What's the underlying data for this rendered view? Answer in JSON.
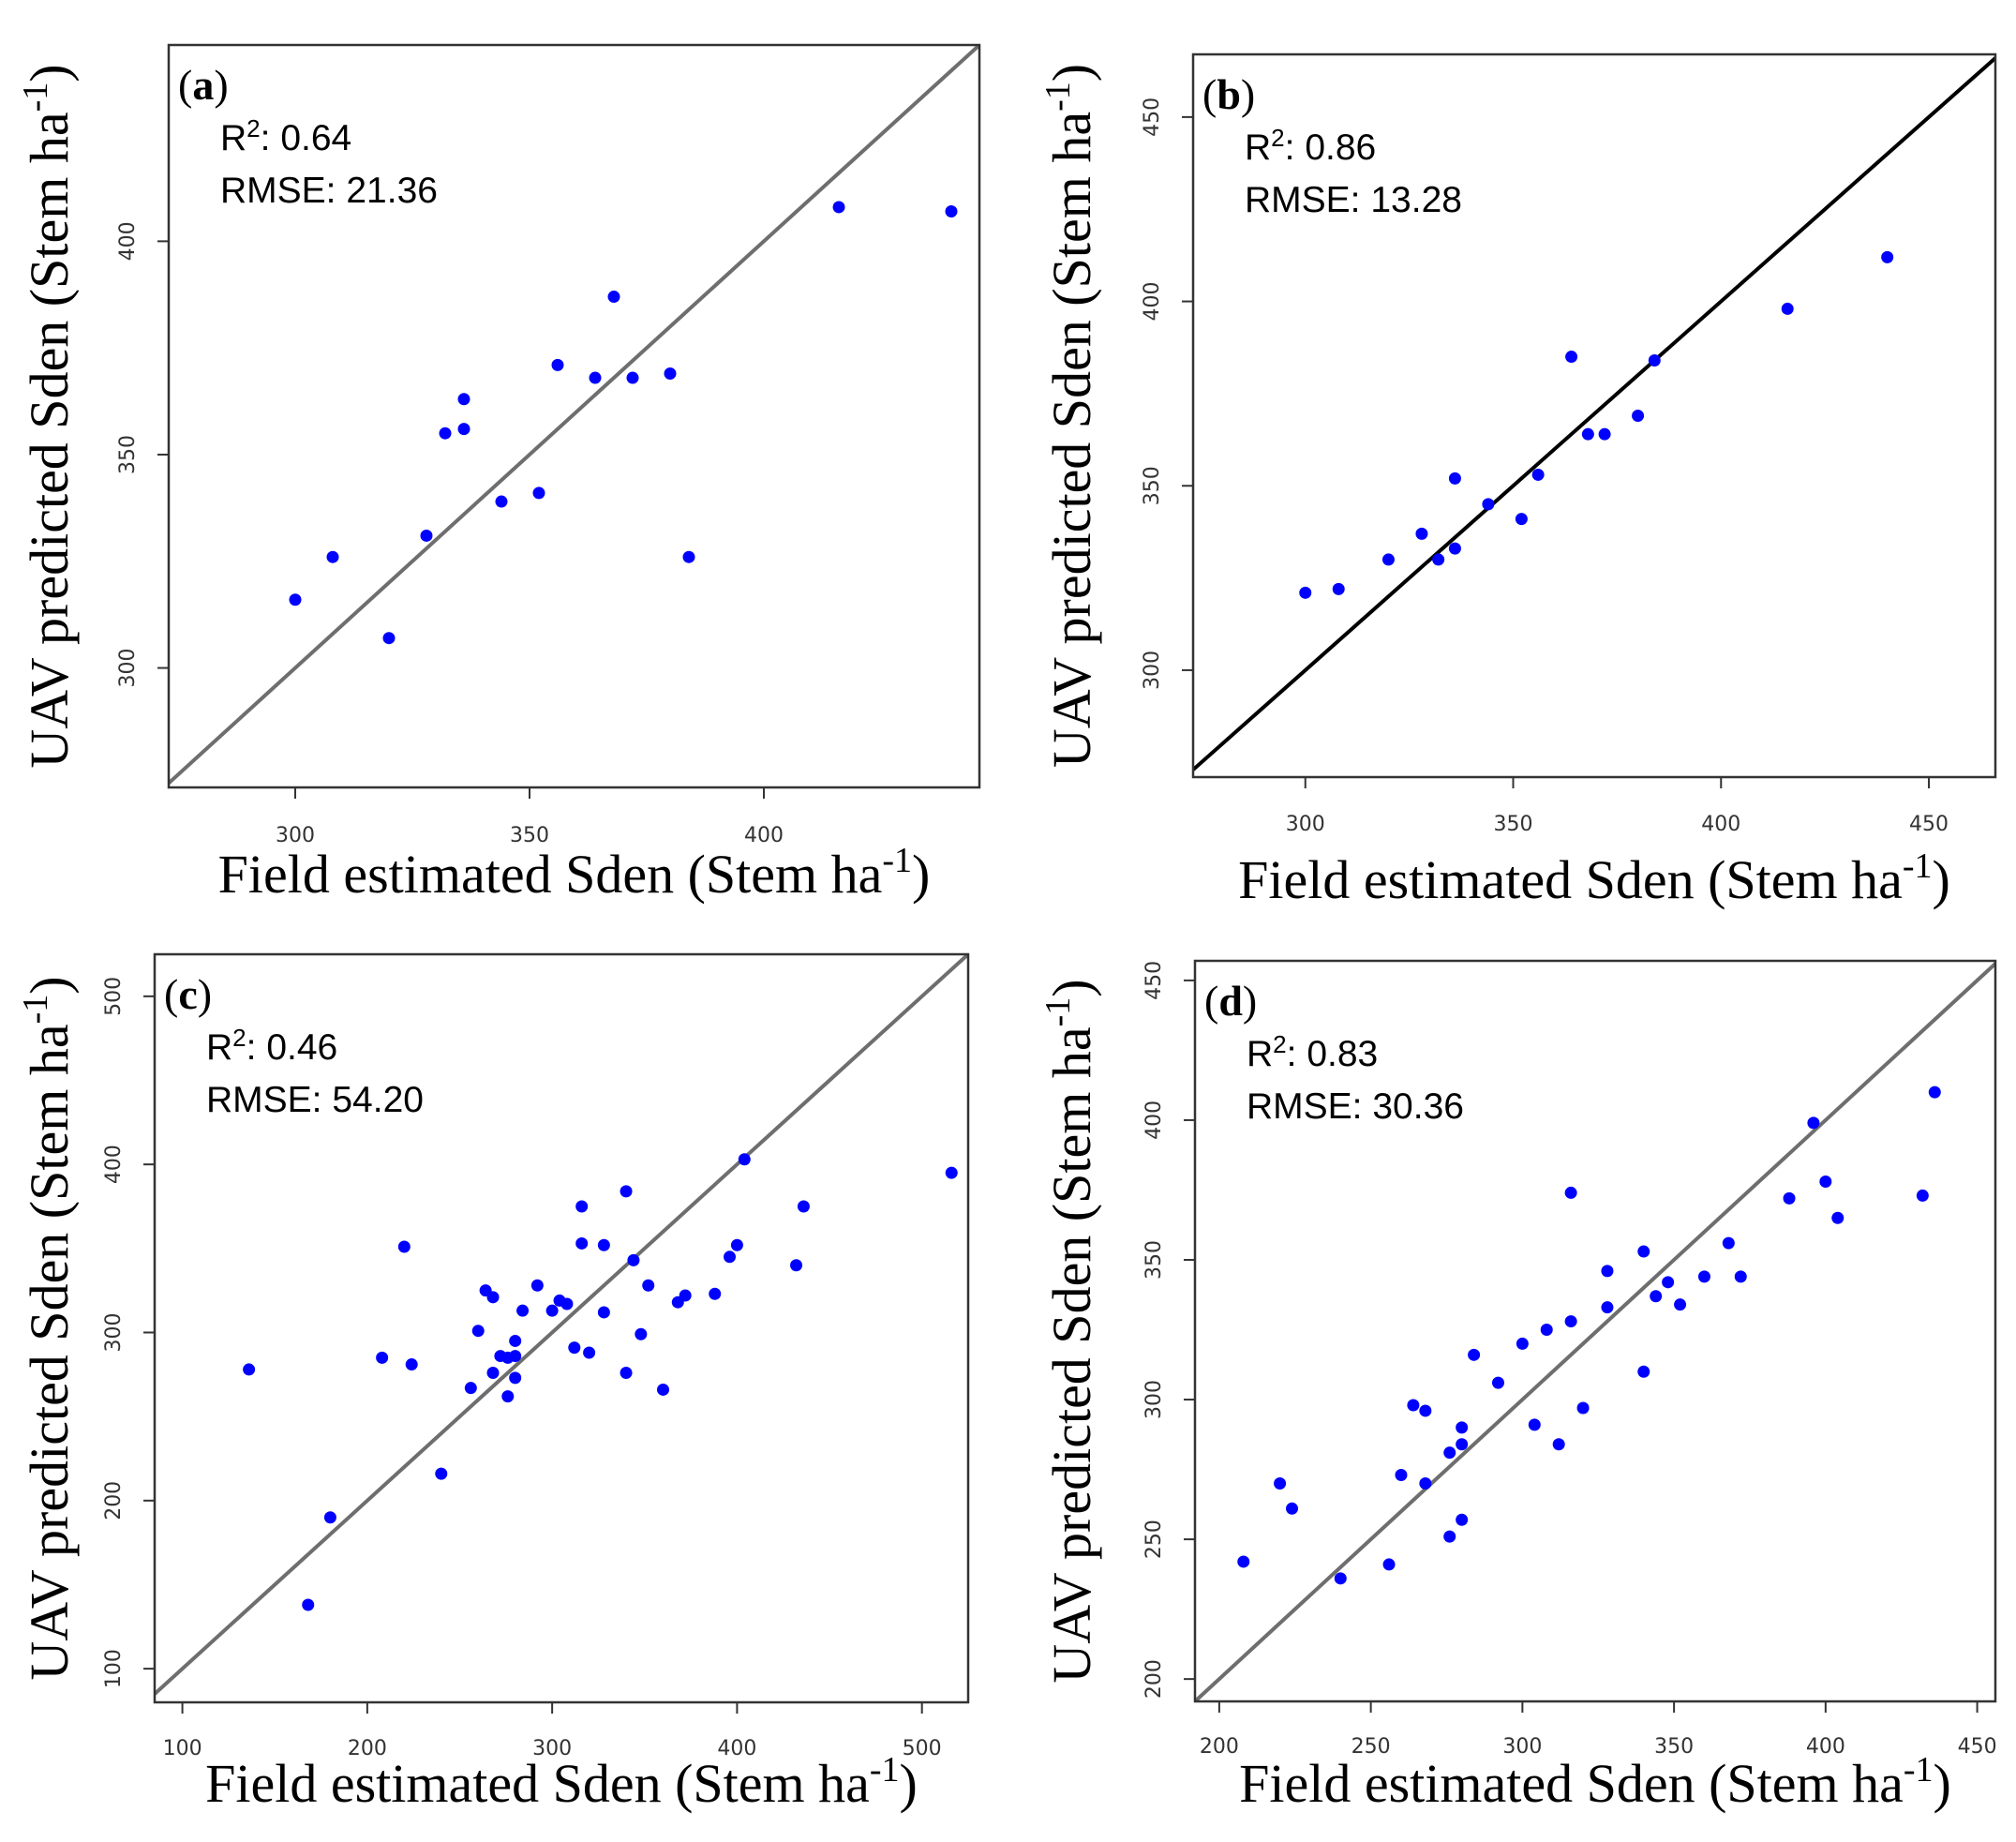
{
  "chart_data": [
    {
      "type": "scatter",
      "panel": "a",
      "tag": "a",
      "r2": "0.64",
      "rmse": "21.36",
      "r2_label": "R",
      "r2_sup": "2",
      "rmse_label": "RMSE: ",
      "xlabel": "Field estimated Sden (Stem ha",
      "ylabel": "UAV predicted Sden (Stem ha",
      "label_sup": "-1",
      "label_close": ")",
      "xlim": [
        273,
        446
      ],
      "ylim": [
        272,
        446
      ],
      "xticks": [
        "300",
        "350",
        "400"
      ],
      "yticks": [
        "300",
        "350",
        "400"
      ],
      "reference_line": "1:1",
      "line_color": "#6e6e6e",
      "point_color": "#0000ff",
      "x": [
        300,
        308,
        320,
        328,
        332,
        336,
        336,
        344,
        352,
        356,
        364,
        368,
        372,
        380,
        384,
        416,
        440
      ],
      "y": [
        316,
        326,
        307,
        331,
        355,
        356,
        363,
        339,
        341,
        371,
        368,
        387,
        368,
        369,
        326,
        408,
        407
      ]
    },
    {
      "type": "scatter",
      "panel": "b",
      "tag": "b",
      "r2": "0.86",
      "rmse": "13.28",
      "r2_label": "R",
      "r2_sup": "2",
      "rmse_label": "RMSE: ",
      "xlabel": "Field estimated Sden (Stem ha",
      "ylabel": "UAV predicted Sden (Stem ha",
      "label_sup": "-1",
      "label_close": ")",
      "xlim": [
        273,
        466
      ],
      "ylim": [
        271,
        467
      ],
      "xticks": [
        "300",
        "350",
        "400",
        "450"
      ],
      "yticks": [
        "300",
        "350",
        "400",
        "450"
      ],
      "reference_line": "1:1",
      "line_color": "#000000",
      "point_color": "#0000ff",
      "x": [
        300,
        308,
        320,
        328,
        332,
        336,
        336,
        344,
        352,
        356,
        364,
        368,
        372,
        380,
        384,
        416,
        440
      ],
      "y": [
        321,
        322,
        330,
        337,
        330,
        333,
        352,
        345,
        341,
        353,
        385,
        364,
        364,
        369,
        384,
        398,
        412
      ]
    },
    {
      "type": "scatter",
      "panel": "c",
      "tag": "c",
      "r2": "0.46",
      "rmse": "54.20",
      "r2_label": "R",
      "r2_sup": "2",
      "rmse_label": "RMSE: ",
      "xlabel": "Field estimated Sden (Stem ha",
      "ylabel": "UAV predicted Sden (Stem ha",
      "label_sup": "-1",
      "label_close": ")",
      "xlim": [
        85,
        525
      ],
      "ylim": [
        80,
        525
      ],
      "xticks": [
        "100",
        "200",
        "300",
        "400",
        "500"
      ],
      "yticks": [
        "100",
        "200",
        "300",
        "400",
        "500"
      ],
      "reference_line": "1:1",
      "line_color": "#6e6e6e",
      "point_color": "#0000ff",
      "x": [
        136,
        168,
        180,
        208,
        220,
        224,
        240,
        256,
        260,
        264,
        268,
        268,
        272,
        276,
        276,
        280,
        280,
        280,
        284,
        292,
        300,
        304,
        308,
        312,
        316,
        316,
        320,
        328,
        328,
        340,
        340,
        344,
        348,
        352,
        360,
        368,
        372,
        388,
        396,
        400,
        404,
        432,
        436,
        516
      ],
      "y": [
        278,
        138,
        190,
        285,
        351,
        281,
        216,
        267,
        301,
        325,
        276,
        321,
        286,
        262,
        285,
        273,
        286,
        295,
        313,
        328,
        313,
        319,
        317,
        291,
        353,
        375,
        288,
        312,
        352,
        384,
        276,
        343,
        299,
        328,
        266,
        318,
        322,
        323,
        345,
        352,
        403,
        340,
        375,
        395
      ]
    },
    {
      "type": "scatter",
      "panel": "d",
      "tag": "d",
      "r2": "0.83",
      "rmse": "30.36",
      "r2_label": "R",
      "r2_sup": "2",
      "rmse_label": "RMSE: ",
      "xlabel": "Field estimated Sden (Stem ha",
      "ylabel": "UAV predicted Sden (Stem ha",
      "label_sup": "-1",
      "label_close": ")",
      "xlim": [
        192,
        456
      ],
      "ylim": [
        192,
        457
      ],
      "xticks": [
        "200",
        "250",
        "300",
        "350",
        "400",
        "450"
      ],
      "yticks": [
        "200",
        "250",
        "300",
        "350",
        "400",
        "450"
      ],
      "reference_line": "1:1",
      "line_color": "#6e6e6e",
      "point_color": "#0000ff",
      "x": [
        208,
        220,
        224,
        240,
        256,
        260,
        264,
        268,
        268,
        276,
        276,
        280,
        280,
        280,
        284,
        292,
        300,
        304,
        308,
        312,
        316,
        316,
        320,
        328,
        328,
        340,
        340,
        344,
        348,
        352,
        360,
        368,
        372,
        388,
        396,
        400,
        404,
        432,
        436
      ],
      "y": [
        242,
        270,
        261,
        236,
        241,
        273,
        298,
        296,
        270,
        281,
        251,
        257,
        284,
        290,
        316,
        306,
        320,
        291,
        325,
        284,
        374,
        328,
        297,
        333,
        346,
        353,
        310,
        337,
        342,
        334,
        344,
        356,
        344,
        372,
        399,
        378,
        365,
        373,
        410
      ]
    }
  ]
}
